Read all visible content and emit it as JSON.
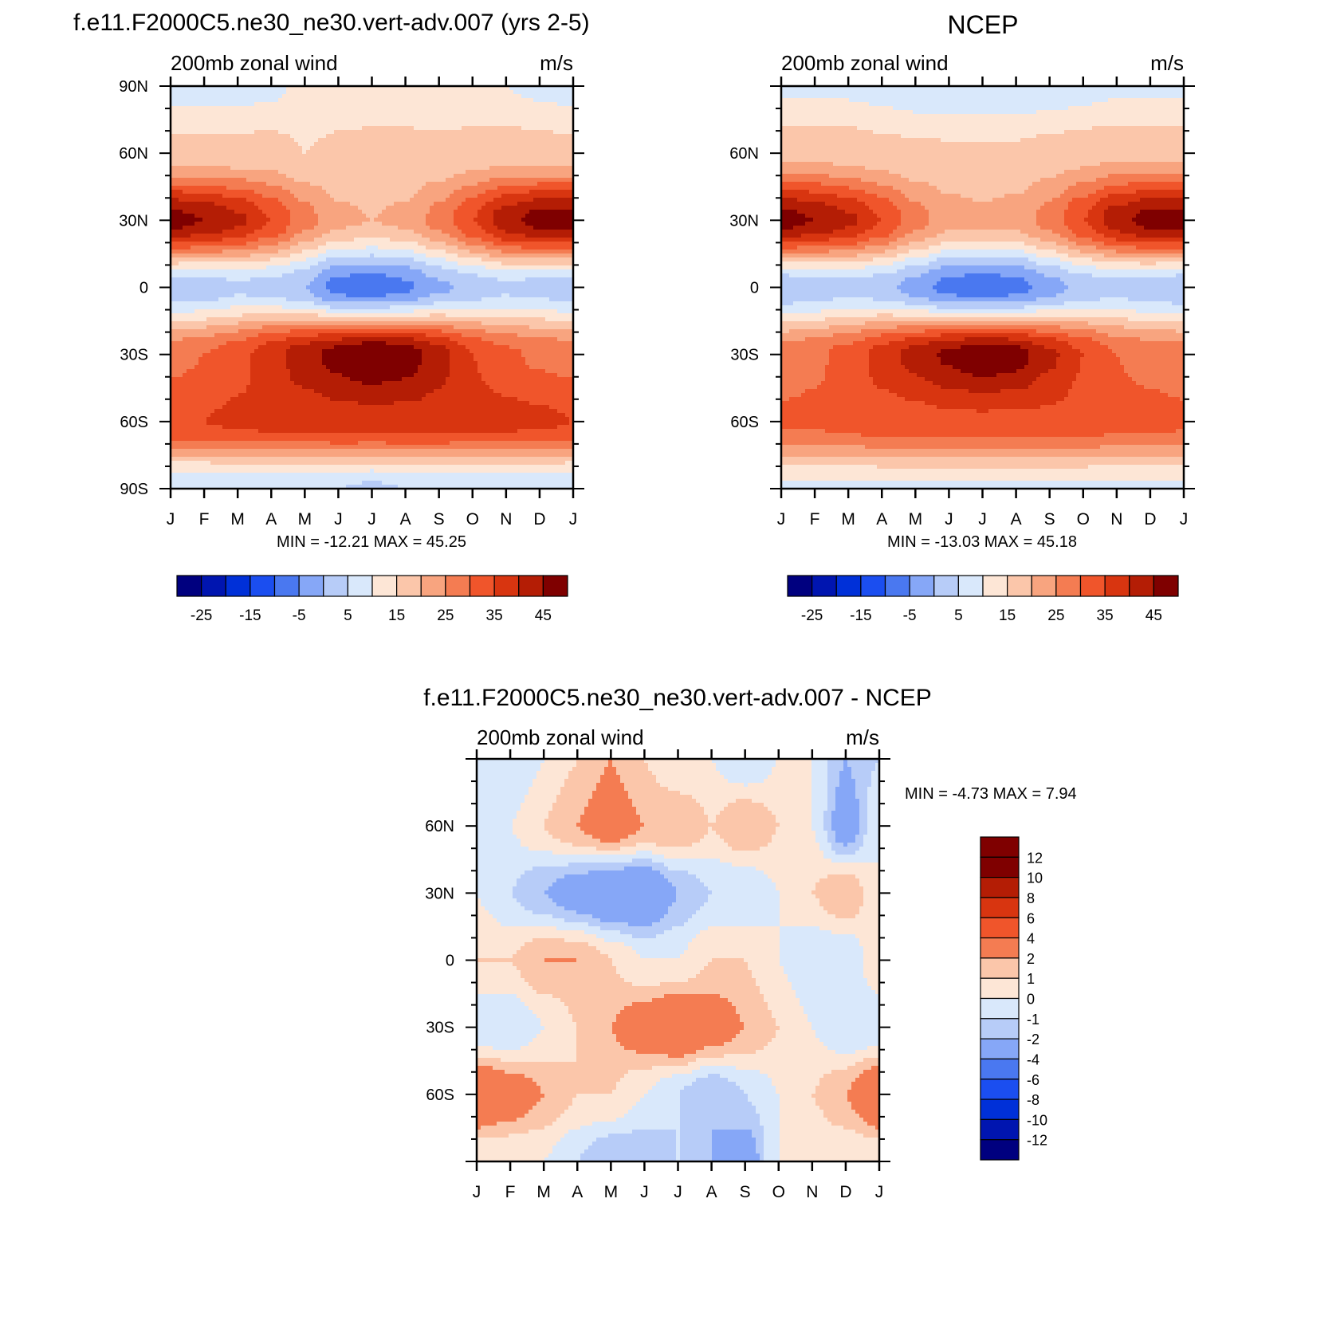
{
  "panels": [
    {
      "id": "model",
      "title": "f.e11.F2000C5.ne30_ne30.vert-adv.007 (yrs 2-5)",
      "left_label": "200mb zonal wind",
      "right_label": "m/s",
      "minmax": "MIN = -12.21 MAX =  45.25",
      "y_ticks": [
        {
          "label": "90N",
          "lat": 90
        },
        {
          "label": "60N",
          "lat": 60
        },
        {
          "label": "30N",
          "lat": 30
        },
        {
          "label": "0",
          "lat": 0
        },
        {
          "label": "30S",
          "lat": -30
        },
        {
          "label": "60S",
          "lat": -60
        },
        {
          "label": "90S",
          "lat": -90
        }
      ],
      "colorbar_labels": [
        "-25",
        "-15",
        "-5",
        "5",
        "15",
        "25",
        "35",
        "45"
      ]
    },
    {
      "id": "obs",
      "title": "NCEP",
      "left_label": "200mb zonal wind",
      "right_label": "m/s",
      "minmax": "MIN = -13.03 MAX =  45.18",
      "y_ticks": [
        {
          "label": "60N",
          "lat": 60
        },
        {
          "label": "30N",
          "lat": 30
        },
        {
          "label": "0",
          "lat": 0
        },
        {
          "label": "30S",
          "lat": -30
        },
        {
          "label": "60S",
          "lat": -60
        }
      ],
      "colorbar_labels": [
        "-25",
        "-15",
        "-5",
        "5",
        "15",
        "25",
        "35",
        "45"
      ]
    },
    {
      "id": "diff",
      "title": "f.e11.F2000C5.ne30_ne30.vert-adv.007 - NCEP",
      "left_label": "200mb zonal wind",
      "right_label": "m/s",
      "minmax": "MIN =  -4.73 MAX =   7.94",
      "y_ticks": [
        {
          "label": "60N",
          "lat": 60
        },
        {
          "label": "30N",
          "lat": 30
        },
        {
          "label": "0",
          "lat": 0
        },
        {
          "label": "30S",
          "lat": -30
        },
        {
          "label": "60S",
          "lat": -60
        }
      ],
      "colorbar_labels": [
        "12",
        "10",
        "8",
        "6",
        "4",
        "2",
        "1",
        "0",
        "-1",
        "-2",
        "-4",
        "-6",
        "-8",
        "-10",
        "-12"
      ]
    }
  ],
  "x_tick_labels": [
    "J",
    "F",
    "M",
    "A",
    "M",
    "J",
    "J",
    "A",
    "S",
    "O",
    "N",
    "D",
    "J"
  ],
  "colors": {
    "wind_palette": [
      "#00007f",
      "#0015b0",
      "#0030d8",
      "#1b4ef0",
      "#4a78f0",
      "#86a7f7",
      "#b7ccf8",
      "#d9e8fb",
      "#fde6d6",
      "#fbc6aa",
      "#f8a47f",
      "#f47c52",
      "#f0552b",
      "#d83510",
      "#b41d05",
      "#7f0000"
    ],
    "diff_palette": [
      "#7f0000",
      "#b41d05",
      "#d83510",
      "#f0552b",
      "#f47c52",
      "#fbc6aa",
      "#fde6d6",
      "#d9e8fb",
      "#b7ccf8",
      "#86a7f7",
      "#4a78f0",
      "#1b4ef0",
      "#0030d8",
      "#0015b0",
      "#00007f"
    ]
  },
  "chart_data": [
    {
      "type": "heatmap",
      "title": "f.e11.F2000C5.ne30_ne30.vert-adv.007 (yrs 2-5)",
      "subtitle_left": "200mb zonal wind",
      "subtitle_right": "m/s",
      "x": [
        "J",
        "F",
        "M",
        "A",
        "M",
        "J",
        "J",
        "A",
        "S",
        "O",
        "N",
        "D",
        "J"
      ],
      "y": [
        90,
        60,
        30,
        0,
        -30,
        -60,
        -90
      ],
      "ylabel_ticks": [
        "90N",
        "60N",
        "30N",
        "0",
        "30S",
        "60S",
        "90S"
      ],
      "levels": [
        -30,
        -25,
        -20,
        -15,
        -10,
        -5,
        0,
        5,
        10,
        15,
        20,
        25,
        30,
        35,
        40,
        45
      ],
      "values": [
        [
          3,
          3,
          3,
          4,
          6,
          7,
          8,
          8,
          7,
          6,
          5,
          4,
          3
        ],
        [
          12,
          12,
          12,
          12,
          10,
          11,
          11,
          11,
          11,
          12,
          13,
          12,
          12
        ],
        [
          42,
          40,
          36,
          30,
          22,
          16,
          15,
          16,
          22,
          30,
          38,
          42,
          42
        ],
        [
          -3,
          -3,
          -1,
          -2,
          -5,
          -12,
          -13,
          -11,
          -6,
          -3,
          -1,
          -2,
          -3
        ],
        [
          23,
          25,
          28,
          33,
          38,
          42,
          45,
          43,
          37,
          30,
          26,
          24,
          23
        ],
        [
          30,
          30,
          31,
          32,
          32,
          33,
          33,
          33,
          33,
          32,
          32,
          31,
          30
        ],
        [
          0,
          0,
          0,
          0,
          0,
          0,
          -1,
          0,
          0,
          0,
          0,
          0,
          0
        ]
      ],
      "min": -12.21,
      "max": 45.25
    },
    {
      "type": "heatmap",
      "title": "NCEP",
      "subtitle_left": "200mb zonal wind",
      "subtitle_right": "m/s",
      "x": [
        "J",
        "F",
        "M",
        "A",
        "M",
        "J",
        "J",
        "A",
        "S",
        "O",
        "N",
        "D",
        "J"
      ],
      "y": [
        90,
        60,
        30,
        0,
        -30,
        -60,
        -90
      ],
      "ylabel_ticks": [
        "60N",
        "30N",
        "0",
        "30S",
        "60S"
      ],
      "levels": [
        -30,
        -25,
        -20,
        -15,
        -10,
        -5,
        0,
        5,
        10,
        15,
        20,
        25,
        30,
        35,
        40,
        45
      ],
      "values": [
        [
          4,
          4,
          4,
          3,
          2,
          1,
          1,
          1,
          2,
          3,
          4,
          4,
          4
        ],
        [
          14,
          14,
          13,
          12,
          11,
          11,
          11,
          11,
          12,
          13,
          14,
          14,
          14
        ],
        [
          42,
          40,
          36,
          30,
          22,
          17,
          16,
          17,
          22,
          30,
          38,
          42,
          42
        ],
        [
          -4,
          -3,
          -2,
          -3,
          -7,
          -12,
          -13,
          -12,
          -7,
          -3,
          -2,
          -3,
          -4
        ],
        [
          22,
          24,
          27,
          32,
          37,
          41,
          44,
          42,
          36,
          30,
          25,
          23,
          22
        ],
        [
          26,
          26,
          27,
          28,
          28,
          29,
          29,
          29,
          29,
          28,
          27,
          27,
          26
        ],
        [
          4,
          4,
          4,
          4,
          4,
          4,
          4,
          4,
          4,
          4,
          4,
          4,
          4
        ]
      ],
      "min": -13.03,
      "max": 45.18
    },
    {
      "type": "heatmap",
      "title": "f.e11.F2000C5.ne30_ne30.vert-adv.007 - NCEP",
      "subtitle_left": "200mb zonal wind",
      "subtitle_right": "m/s",
      "x": [
        "J",
        "F",
        "M",
        "A",
        "M",
        "J",
        "J",
        "A",
        "S",
        "O",
        "N",
        "D",
        "J"
      ],
      "y": [
        90,
        60,
        30,
        0,
        -30,
        -60,
        -90
      ],
      "ylabel_ticks": [
        "60N",
        "30N",
        "0",
        "30S",
        "60S"
      ],
      "levels": [
        -12,
        -10,
        -8,
        -6,
        -4,
        -2,
        -1,
        0,
        1,
        2,
        4,
        6,
        8,
        10,
        12
      ],
      "values": [
        [
          -1,
          -1,
          0,
          1,
          2,
          1,
          0,
          0,
          -1,
          0,
          0,
          -2,
          -1
        ],
        [
          0,
          0,
          1,
          2,
          3,
          2,
          2,
          1,
          2,
          1,
          0,
          -3,
          0
        ],
        [
          0,
          -1,
          -2,
          -3,
          -4,
          -4,
          -2,
          -1,
          -1,
          0,
          1,
          2,
          0
        ],
        [
          1,
          1,
          2,
          2,
          1,
          0,
          0,
          1,
          1,
          0,
          -1,
          -1,
          1
        ],
        [
          -1,
          -1,
          0,
          1,
          2,
          3,
          4,
          3,
          2,
          1,
          0,
          -1,
          -1
        ],
        [
          4,
          3,
          2,
          1,
          1,
          0,
          -1,
          -2,
          -1,
          0,
          1,
          2,
          4
        ],
        [
          0,
          0,
          0,
          -1,
          -2,
          -2,
          -1,
          -2,
          -3,
          0,
          0,
          0,
          0
        ]
      ],
      "min": -4.73,
      "max": 7.94
    }
  ]
}
